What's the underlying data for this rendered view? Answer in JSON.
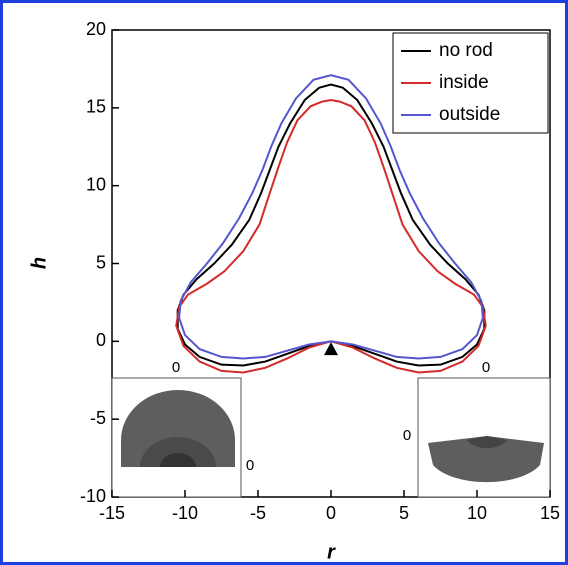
{
  "chart_data": {
    "type": "line",
    "x_label": "r",
    "y_label": "h",
    "xlim": [
      -15,
      15
    ],
    "xticks": [
      -15,
      -10,
      -5,
      0,
      5,
      10,
      15
    ],
    "ylim": [
      -10,
      20
    ],
    "yticks": [
      -10,
      -5,
      0,
      5,
      10,
      15,
      20
    ],
    "legend": "upper right",
    "series": [
      {
        "name": "no rod",
        "color": "#000000",
        "x": [
          0,
          1.5,
          3,
          4.5,
          6,
          7.5,
          9,
          10,
          10.5,
          10.5,
          10.1,
          9.2,
          8,
          6.8,
          5.6,
          4.8,
          4.2,
          3.6,
          2.8,
          1.8,
          0.8,
          0,
          -0.8,
          -1.8,
          -2.8,
          -3.6,
          -4.2,
          -4.8,
          -5.6,
          -6.8,
          -8,
          -9.2,
          -10.1,
          -10.5,
          -10.5,
          -10,
          -9,
          -7.5,
          -6,
          -4.5,
          -3,
          -1.5,
          0
        ],
        "y": [
          0,
          -0.3,
          -0.8,
          -1.3,
          -1.55,
          -1.5,
          -1.0,
          -0.2,
          0.8,
          2,
          3,
          4,
          5,
          6.2,
          7.8,
          9.5,
          11,
          12.5,
          14,
          15.5,
          16.3,
          16.5,
          16.3,
          15.5,
          14,
          12.5,
          11,
          9.5,
          7.8,
          6.2,
          5,
          4,
          3,
          2,
          0.8,
          -0.2,
          -1.0,
          -1.5,
          -1.55,
          -1.3,
          -0.8,
          -0.3,
          0
        ]
      },
      {
        "name": "inside",
        "color": "#d42a2a",
        "x": [
          0,
          1.5,
          3,
          4.5,
          6,
          7.5,
          9,
          10.1,
          10.6,
          10.4,
          9.8,
          8.5,
          7.3,
          6,
          4.9,
          4.2,
          3.6,
          3,
          2.3,
          1.4,
          0.6,
          0,
          -0.6,
          -1.4,
          -2.3,
          -3,
          -3.6,
          -4.2,
          -4.9,
          -6,
          -7.3,
          -8.5,
          -9.8,
          -10.4,
          -10.6,
          -10.1,
          -9,
          -7.5,
          -6,
          -4.5,
          -3,
          -1.5,
          0
        ],
        "y": [
          0,
          -0.4,
          -1.1,
          -1.7,
          -2.0,
          -1.9,
          -1.3,
          -0.3,
          1,
          2.2,
          3,
          3.7,
          4.5,
          5.8,
          7.5,
          9.5,
          11.2,
          12.8,
          14.2,
          15.1,
          15.4,
          15.5,
          15.4,
          15.1,
          14.2,
          12.8,
          11.2,
          9.5,
          7.5,
          5.8,
          4.5,
          3.7,
          3,
          2.2,
          1,
          -0.3,
          -1.3,
          -1.9,
          -2.0,
          -1.7,
          -1.1,
          -0.4,
          0
        ]
      },
      {
        "name": "outside",
        "color": "#5656d0",
        "x": [
          0,
          1.5,
          3,
          4.5,
          6,
          7.5,
          9,
          10,
          10.4,
          10.3,
          9.6,
          8.5,
          7.4,
          6.3,
          5.4,
          4.7,
          4.1,
          3.4,
          2.4,
          1.2,
          0,
          -1.2,
          -2.4,
          -3.4,
          -4.1,
          -4.7,
          -5.4,
          -6.3,
          -7.4,
          -8.5,
          -9.6,
          -10.3,
          -10.4,
          -10,
          -9,
          -7.5,
          -6,
          -4.5,
          -3,
          -1.5,
          0
        ],
        "y": [
          0,
          -0.2,
          -0.6,
          -1.0,
          -1.1,
          -1.0,
          -0.5,
          0.4,
          1.5,
          2.6,
          3.8,
          5,
          6.3,
          7.9,
          9.5,
          11,
          12.5,
          14,
          15.6,
          16.8,
          17.1,
          16.8,
          15.6,
          14,
          12.5,
          11,
          9.5,
          7.9,
          6.3,
          5,
          3.8,
          2.6,
          1.5,
          0.4,
          -0.5,
          -1.0,
          -1.1,
          -1.0,
          -0.6,
          -0.2,
          0
        ]
      }
    ],
    "marker": {
      "x": 0,
      "y": -0.5
    },
    "insets": [
      {
        "labels": [
          "0",
          "0"
        ]
      },
      {
        "labels": [
          "0",
          "0"
        ]
      }
    ]
  }
}
